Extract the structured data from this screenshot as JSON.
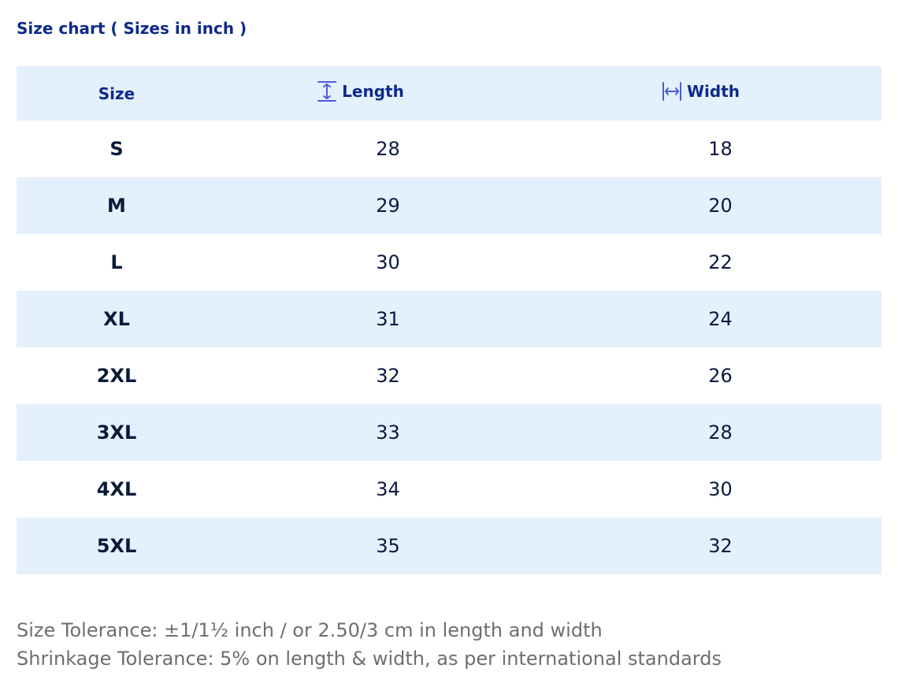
{
  "title": "Size chart ( Sizes in inch )",
  "colors": {
    "header_text": "#0d2a8a",
    "header_bg": "#e5f0fd",
    "icon": "#4a5cd6",
    "body_text": "#0b1840",
    "note_text": "#6e6e6e"
  },
  "table": {
    "headers": {
      "size": "Size",
      "length": "Length",
      "length_icon": "vertical-measure-icon",
      "width": "Width",
      "width_icon": "horizontal-measure-icon"
    },
    "rows": [
      {
        "size": "S",
        "length": "28",
        "width": "18"
      },
      {
        "size": "M",
        "length": "29",
        "width": "20"
      },
      {
        "size": "L",
        "length": "30",
        "width": "22"
      },
      {
        "size": "XL",
        "length": "31",
        "width": "24"
      },
      {
        "size": "2XL",
        "length": "32",
        "width": "26"
      },
      {
        "size": "3XL",
        "length": "33",
        "width": "28"
      },
      {
        "size": "4XL",
        "length": "34",
        "width": "30"
      },
      {
        "size": "5XL",
        "length": "35",
        "width": "32"
      }
    ]
  },
  "notes": {
    "size_tolerance": "Size Tolerance: ±1/1½ inch / or 2.50/3 cm in length and width",
    "shrinkage_tolerance": "Shrinkage Tolerance: 5% on length & width, as per international standards"
  }
}
